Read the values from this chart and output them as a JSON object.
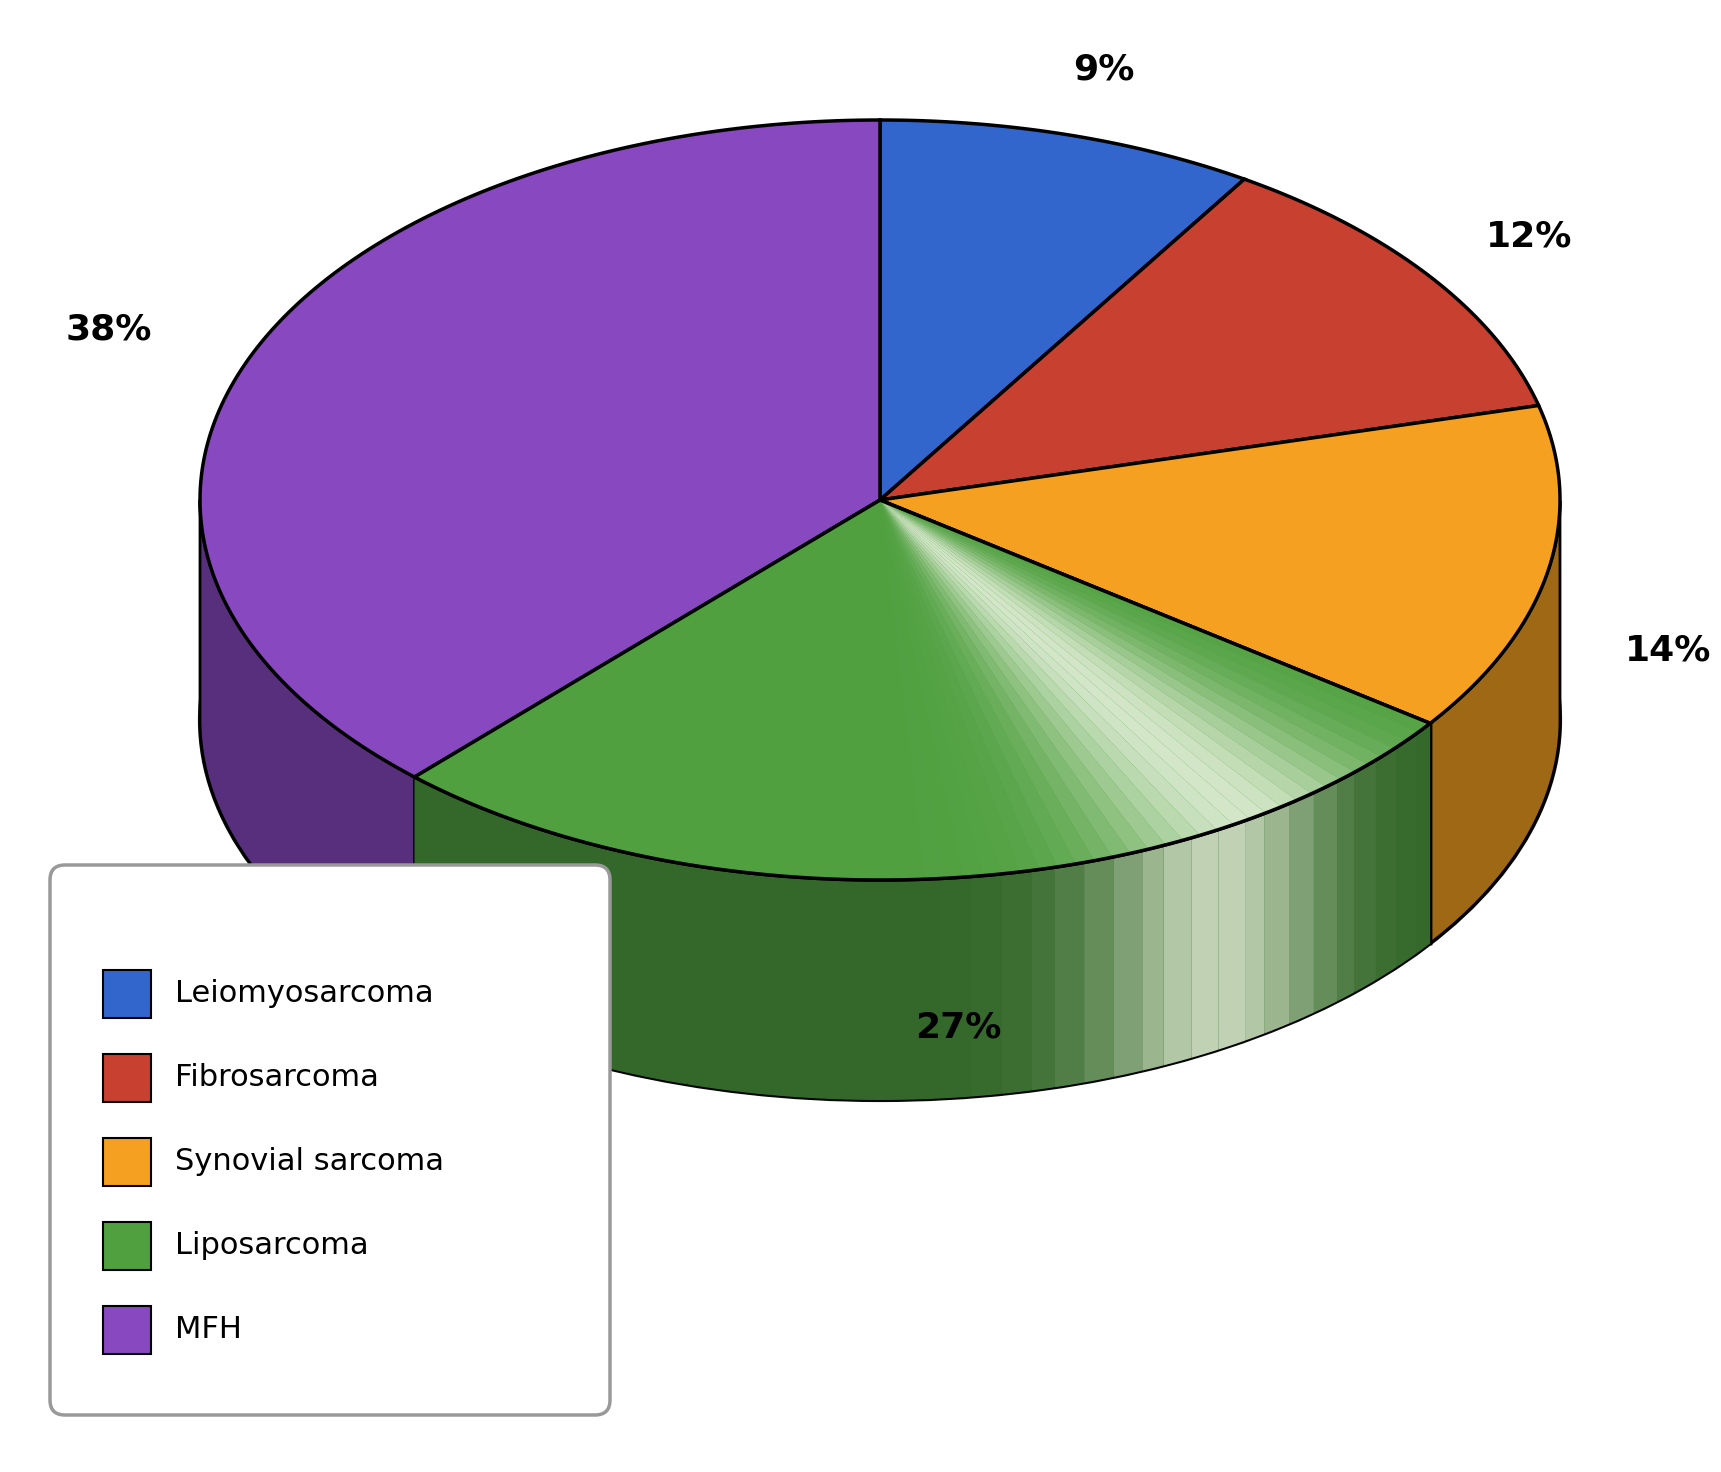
{
  "labels": [
    "Leiomyosarcoma",
    "Fibrosarcoma",
    "Synovial sarcoma",
    "Liposarcoma",
    "MFH"
  ],
  "values": [
    9,
    12,
    14,
    27,
    38
  ],
  "colors_top": [
    "#3366cc",
    "#c84030",
    "#f5a020",
    "#50a040",
    "#8848c0"
  ],
  "pct_labels": [
    "9%",
    "12%",
    "14%",
    "27%",
    "38%"
  ],
  "background_color": "#ffffff",
  "legend_fontsize": 22,
  "pct_fontsize": 26,
  "legend_colors": [
    "#3366cc",
    "#c84030",
    "#f5a020",
    "#50a040",
    "#8848c0"
  ]
}
